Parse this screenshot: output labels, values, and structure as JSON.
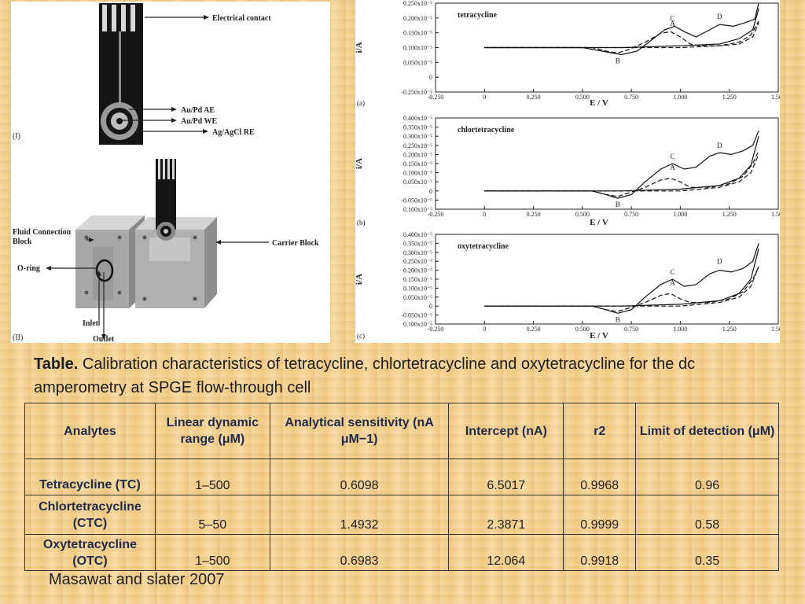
{
  "device": {
    "label_i": "(I)",
    "label_ii": "(II)",
    "electrical_contact": "Electrical contact",
    "ae": "Au/Pd AE",
    "we": "Au/Pd WE",
    "re": "Ag/AgCl RE",
    "fluid_connection_1": "Fluid Connection",
    "fluid_connection_2": "Block",
    "carrier_block": "Carrier Block",
    "o_ring": "O-ring",
    "inlet": "Inlet",
    "outlet": "Outlet"
  },
  "chart_data": [
    {
      "type": "line",
      "panel": "(a)",
      "title": "tetracycline",
      "xlabel": "E / V",
      "ylabel": "i/A",
      "xlim": [
        -0.25,
        1.5
      ],
      "ylim": [
        -0.25,
        0.25
      ],
      "x_ticks": [
        "-0.250",
        "0",
        "0.250",
        "0.500",
        "0.750",
        "1.000",
        "1.250",
        "1.500"
      ],
      "y_ticks": [
        "0.250x10⁻⁵",
        "0.200x10⁻⁵",
        "0.150x10⁻⁵",
        "0.100x10⁻⁵",
        "0.050x10⁻⁵",
        "0",
        "-0.250x10⁻⁵"
      ],
      "annotations": [
        "A",
        "B",
        "C",
        "D"
      ],
      "series": [
        {
          "style": "solid",
          "points": [
            [
              0,
              0
            ],
            [
              0.5,
              0
            ],
            [
              0.6,
              -0.02
            ],
            [
              0.7,
              -0.04
            ],
            [
              0.78,
              -0.02
            ],
            [
              0.85,
              0.04
            ],
            [
              0.92,
              0.1
            ],
            [
              0.97,
              0.12
            ],
            [
              1.02,
              0.09
            ],
            [
              1.08,
              0.06
            ],
            [
              1.15,
              0.1
            ],
            [
              1.2,
              0.13
            ],
            [
              1.27,
              0.12
            ],
            [
              1.33,
              0.14
            ],
            [
              1.38,
              0.16
            ],
            [
              1.4,
              0.25
            ]
          ]
        },
        {
          "style": "dashed",
          "points": [
            [
              0,
              0
            ],
            [
              0.55,
              0
            ],
            [
              0.62,
              -0.02
            ],
            [
              0.68,
              -0.03
            ],
            [
              0.74,
              -0.01
            ],
            [
              0.82,
              0.03
            ],
            [
              0.9,
              0.08
            ],
            [
              0.95,
              0.09
            ],
            [
              1.0,
              0.06
            ],
            [
              1.05,
              0.02
            ],
            [
              1.1,
              0.01
            ],
            [
              1.2,
              0.01
            ],
            [
              1.3,
              0.03
            ],
            [
              1.36,
              0.07
            ],
            [
              1.4,
              0.15
            ]
          ]
        },
        {
          "style": "solid",
          "points": [
            [
              0,
              0
            ],
            [
              0.7,
              0
            ],
            [
              1.0,
              0.01
            ],
            [
              1.2,
              0.02
            ],
            [
              1.3,
              0.05
            ],
            [
              1.37,
              0.1
            ],
            [
              1.4,
              0.22
            ]
          ]
        },
        {
          "style": "dashed",
          "points": [
            [
              0,
              0
            ],
            [
              0.7,
              0
            ],
            [
              1.0,
              0
            ],
            [
              1.2,
              0.01
            ],
            [
              1.3,
              0.02
            ],
            [
              1.37,
              0.06
            ],
            [
              1.4,
              0.14
            ]
          ]
        }
      ]
    },
    {
      "type": "line",
      "panel": "(b)",
      "title": "chlortetracycline",
      "xlabel": "E / V",
      "ylabel": "i/A",
      "xlim": [
        -0.25,
        1.5
      ],
      "ylim": [
        -0.1,
        0.4
      ],
      "x_ticks": [
        "-0.250",
        "0",
        "0.250",
        "0.500",
        "0.750",
        "1.000",
        "1.250",
        "1.500"
      ],
      "y_ticks": [
        "0.400x10⁻⁵",
        "0.350x10⁻⁵",
        "0.300x10⁻⁵",
        "0.250x10⁻⁵",
        "0.200x10⁻⁵",
        "0.150x10⁻⁵",
        "0.100x10⁻⁵",
        "0.050x10⁻⁵",
        "0",
        "-0.050x10⁻⁵",
        "0.100x10⁻⁵"
      ],
      "annotations": [
        "A",
        "B",
        "C",
        "D"
      ],
      "series": [
        {
          "style": "solid",
          "points": [
            [
              0,
              0
            ],
            [
              0.55,
              0
            ],
            [
              0.62,
              -0.02
            ],
            [
              0.68,
              -0.04
            ],
            [
              0.75,
              -0.02
            ],
            [
              0.82,
              0.05
            ],
            [
              0.9,
              0.12
            ],
            [
              0.96,
              0.15
            ],
            [
              1.02,
              0.12
            ],
            [
              1.08,
              0.13
            ],
            [
              1.15,
              0.19
            ],
            [
              1.2,
              0.21
            ],
            [
              1.26,
              0.2
            ],
            [
              1.32,
              0.22
            ],
            [
              1.37,
              0.25
            ],
            [
              1.4,
              0.33
            ]
          ]
        },
        {
          "style": "dashed",
          "points": [
            [
              0,
              0
            ],
            [
              0.55,
              0
            ],
            [
              0.62,
              -0.02
            ],
            [
              0.68,
              -0.03
            ],
            [
              0.74,
              -0.01
            ],
            [
              0.82,
              0.02
            ],
            [
              0.9,
              0.06
            ],
            [
              0.95,
              0.07
            ],
            [
              1.0,
              0.05
            ],
            [
              1.05,
              0.02
            ],
            [
              1.15,
              0.02
            ],
            [
              1.25,
              0.04
            ],
            [
              1.32,
              0.08
            ],
            [
              1.37,
              0.15
            ],
            [
              1.4,
              0.22
            ]
          ]
        },
        {
          "style": "solid",
          "points": [
            [
              0,
              0
            ],
            [
              0.7,
              0
            ],
            [
              1.0,
              0.01
            ],
            [
              1.2,
              0.03
            ],
            [
              1.3,
              0.07
            ],
            [
              1.36,
              0.14
            ],
            [
              1.4,
              0.3
            ]
          ]
        },
        {
          "style": "dashed",
          "points": [
            [
              0,
              0
            ],
            [
              0.7,
              0
            ],
            [
              1.0,
              0
            ],
            [
              1.2,
              0.02
            ],
            [
              1.3,
              0.05
            ],
            [
              1.36,
              0.1
            ],
            [
              1.4,
              0.2
            ]
          ]
        }
      ]
    },
    {
      "type": "line",
      "panel": "(c)",
      "title": "oxytetracycline",
      "xlabel": "E / V",
      "ylabel": "i/A",
      "xlim": [
        -0.25,
        1.5
      ],
      "ylim": [
        -0.1,
        0.4
      ],
      "x_ticks": [
        "-0.250",
        "0",
        "0.250",
        "0.500",
        "0.750",
        "1.000",
        "1.250",
        "1.500"
      ],
      "y_ticks": [
        "0.400x10⁻⁵",
        "0.350x10⁻⁵",
        "0.300x10⁻⁵",
        "0.250x10⁻⁵",
        "0.200x10⁻⁵",
        "0.150x10⁻⁵",
        "0.100x10⁻⁵",
        "0.050x10⁻⁵",
        "0",
        "-0.050x10⁻⁵",
        "0.100x10⁻⁵"
      ],
      "annotations": [
        "A",
        "B",
        "C",
        "D"
      ],
      "series": [
        {
          "style": "solid",
          "points": [
            [
              0,
              0
            ],
            [
              0.55,
              0
            ],
            [
              0.62,
              -0.02
            ],
            [
              0.68,
              -0.04
            ],
            [
              0.75,
              -0.02
            ],
            [
              0.82,
              0.05
            ],
            [
              0.9,
              0.12
            ],
            [
              0.96,
              0.15
            ],
            [
              1.02,
              0.11
            ],
            [
              1.08,
              0.12
            ],
            [
              1.15,
              0.18
            ],
            [
              1.2,
              0.2
            ],
            [
              1.26,
              0.19
            ],
            [
              1.32,
              0.21
            ],
            [
              1.37,
              0.25
            ],
            [
              1.4,
              0.35
            ]
          ]
        },
        {
          "style": "dashed",
          "points": [
            [
              0,
              0
            ],
            [
              0.55,
              0
            ],
            [
              0.62,
              -0.02
            ],
            [
              0.68,
              -0.03
            ],
            [
              0.74,
              -0.01
            ],
            [
              0.82,
              0.02
            ],
            [
              0.9,
              0.06
            ],
            [
              0.95,
              0.07
            ],
            [
              1.0,
              0.04
            ],
            [
              1.05,
              0.02
            ],
            [
              1.15,
              0.02
            ],
            [
              1.25,
              0.04
            ],
            [
              1.32,
              0.08
            ],
            [
              1.37,
              0.15
            ],
            [
              1.4,
              0.22
            ]
          ]
        },
        {
          "style": "solid",
          "points": [
            [
              0,
              0
            ],
            [
              0.7,
              0
            ],
            [
              1.0,
              0.01
            ],
            [
              1.2,
              0.03
            ],
            [
              1.3,
              0.07
            ],
            [
              1.36,
              0.15
            ],
            [
              1.4,
              0.32
            ]
          ]
        },
        {
          "style": "dashed",
          "points": [
            [
              0,
              0
            ],
            [
              0.7,
              0
            ],
            [
              1.0,
              0
            ],
            [
              1.2,
              0.02
            ],
            [
              1.3,
              0.05
            ],
            [
              1.36,
              0.11
            ],
            [
              1.4,
              0.22
            ]
          ]
        }
      ]
    }
  ],
  "caption": {
    "bold": "Table.",
    "text": " Calibration characteristics of tetracycline, chlortetracycline and oxytetracycline for the dc amperometry at SPGE flow-through cell"
  },
  "table": {
    "headers": [
      "Analytes",
      "Linear dynamic range (μM)",
      "Analytical sensitivity (nA μM−1)",
      "Intercept (nA)",
      "r2",
      "Limit of detection (μM)"
    ],
    "rows": [
      [
        "Tetracycline (TC)",
        "1–500",
        "0.6098",
        "6.5017",
        "0.9968",
        "0.96"
      ],
      [
        "Chlortetracycline (CTC)",
        "5–50",
        "1.4932",
        "2.3871",
        "0.9999",
        "0.58"
      ],
      [
        "Oxytetracycline (OTC)",
        "1–500",
        "0.6983",
        "12.064",
        "0.9918",
        "0.35"
      ]
    ]
  },
  "reference": "Masawat and slater 2007"
}
